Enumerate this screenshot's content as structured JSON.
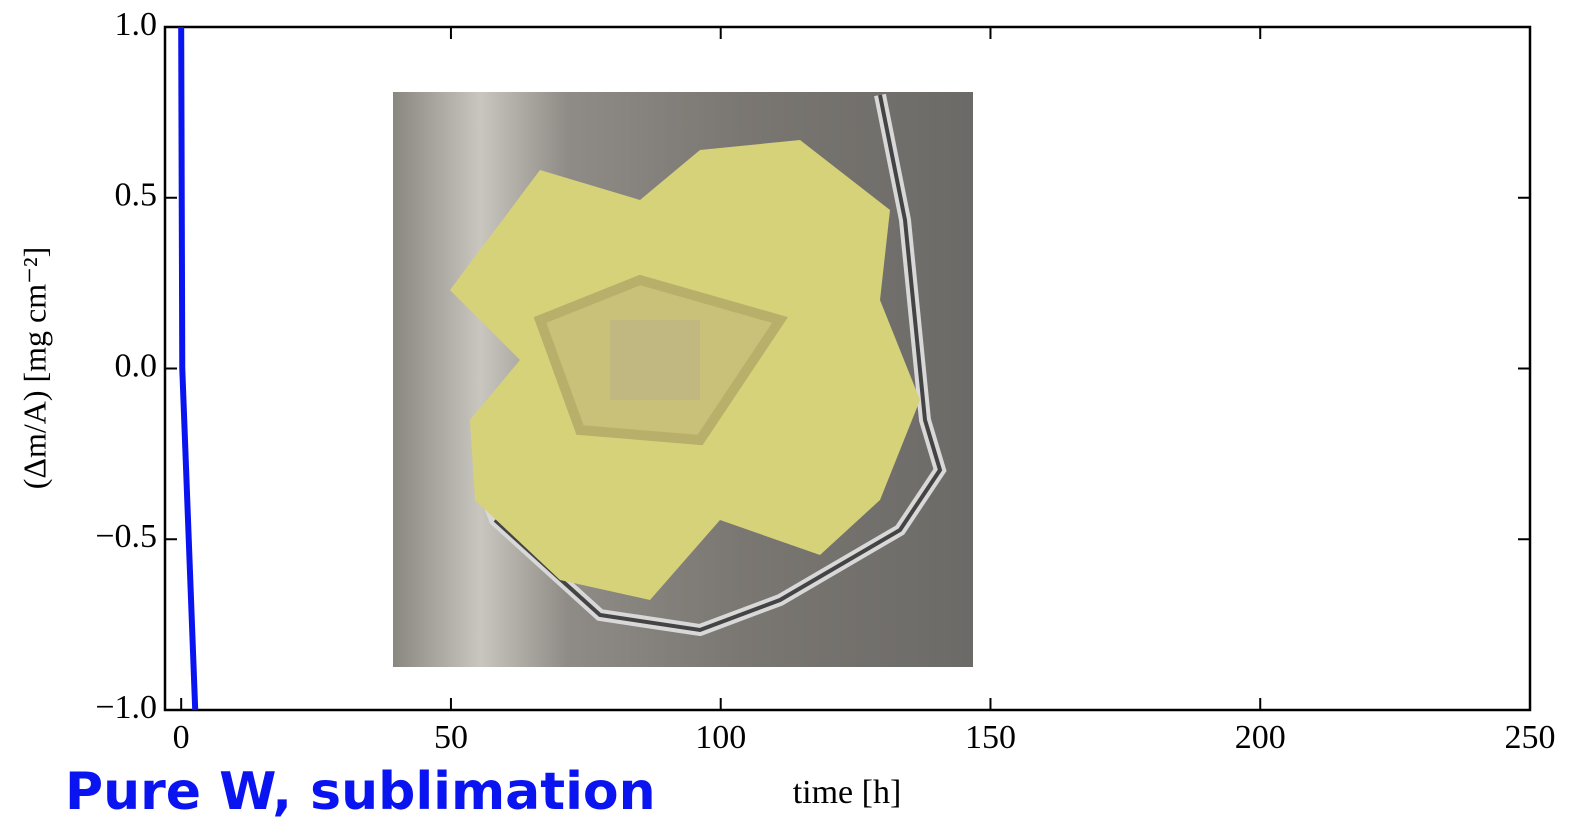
{
  "chart_data": {
    "type": "line",
    "x_label": "time [h]",
    "y_label": "(Δm/A) [mg cm⁻²]",
    "annotation": "Pure W, sublimation",
    "x": [
      0.0,
      0.2,
      2.6
    ],
    "series": [
      {
        "color": "#0a14f0",
        "values": [
          1.0,
          0.0,
          -1.0
        ]
      }
    ],
    "xlim": [
      -3,
      250
    ],
    "ylim": [
      -1,
      1
    ],
    "xticks": [
      0,
      50,
      100,
      150,
      200,
      250
    ],
    "yticks": [
      {
        "value": -1,
        "label": "−1.0"
      },
      {
        "value": -0.5,
        "label": "−0.5"
      },
      {
        "value": 0,
        "label": "0.0"
      },
      0.5,
      {
        "value": 1,
        "label": "1.0"
      }
    ],
    "grid": false
  }
}
